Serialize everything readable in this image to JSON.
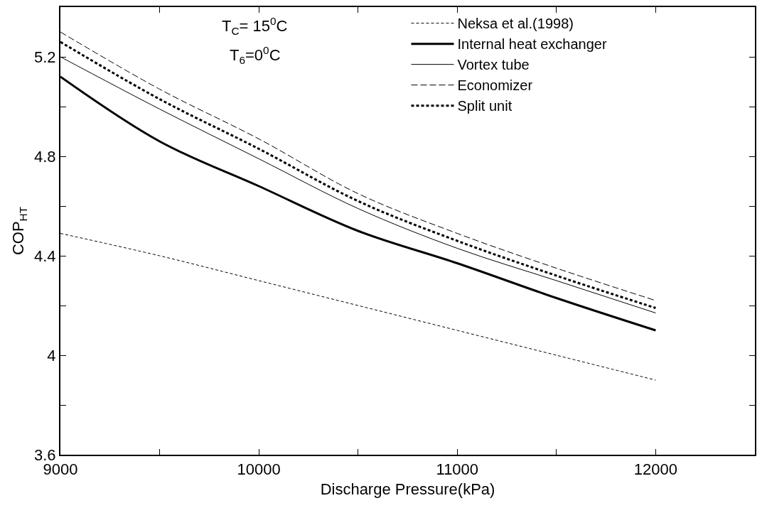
{
  "chart_data": {
    "type": "line",
    "xlabel": "Discharge Pressure(kPa)",
    "ylabel": "COP$_{HT}$",
    "x": [
      9000,
      9500,
      10000,
      10500,
      11000,
      11500,
      12000
    ],
    "series": [
      {
        "name": "Neksa et al.(1998)",
        "color": "#000000",
        "line_style": "dashed",
        "values": [
          4.49,
          4.4,
          4.3,
          4.2,
          4.1,
          4.0,
          3.9
        ]
      },
      {
        "name": "Internal heat exchanger",
        "color": "#000000",
        "line_style": "solid",
        "values": [
          5.12,
          4.86,
          4.68,
          4.5,
          4.37,
          4.23,
          4.1
        ]
      },
      {
        "name": "Vortex tube",
        "color": "#000000",
        "line_style": "solid",
        "values": [
          5.2,
          4.99,
          4.79,
          4.59,
          4.43,
          4.3,
          4.17
        ]
      },
      {
        "name": "Economizer",
        "color": "#000000",
        "line_style": "longdash",
        "values": [
          5.3,
          5.07,
          4.87,
          4.65,
          4.49,
          4.35,
          4.22
        ]
      },
      {
        "name": "Split unit",
        "color": "#000000",
        "line_style": "dashed",
        "values": [
          5.26,
          5.03,
          4.83,
          4.62,
          4.46,
          4.32,
          4.19
        ]
      }
    ],
    "xlim": [
      9000,
      12500
    ],
    "xticks": [
      9000,
      {
        "value": 9500,
        "label": null
      },
      10000,
      {
        "value": 10500,
        "label": null
      },
      11000,
      {
        "value": 11500,
        "label": null
      },
      12000,
      {
        "value": 12500,
        "label": null
      }
    ],
    "ylim": [
      3.6,
      5.4
    ],
    "yticks": [
      3.6,
      {
        "value": 3.8,
        "label": null
      },
      4,
      {
        "value": 4.2,
        "label": null
      },
      4.4,
      {
        "value": 4.6,
        "label": null
      },
      4.8,
      {
        "value": 5.0,
        "label": null
      },
      5.2
    ],
    "annotations": [
      "T$_{C}$= 15$^{0}$C",
      "T$_{6}$=0$^{0}$C"
    ],
    "legend": "top right",
    "marker": "none"
  }
}
